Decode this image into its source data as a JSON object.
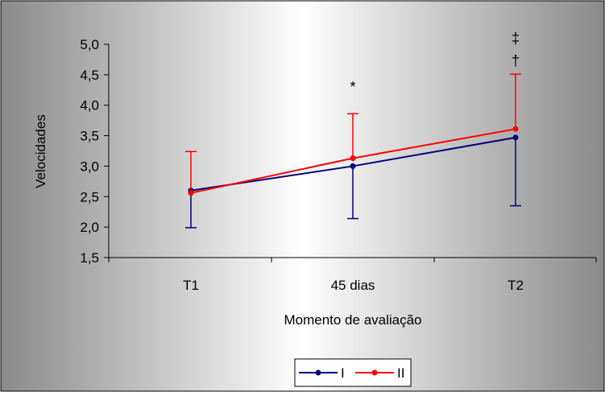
{
  "chart_data": {
    "type": "line",
    "xlabel": "Momento de avaliação",
    "ylabel": "Velocidades",
    "categories": [
      "T1",
      "45 dias",
      "T2"
    ],
    "ylim": [
      1.5,
      5.0
    ],
    "yticks": [
      "1,5",
      "2,0",
      "2,5",
      "3,0",
      "3,5",
      "4,0",
      "4,5",
      "5,0"
    ],
    "series": [
      {
        "name": "I",
        "color": "#000080",
        "values": [
          2.6,
          3.0,
          3.47
        ],
        "error_low": [
          1.99,
          2.14,
          2.35
        ]
      },
      {
        "name": "II",
        "color": "#FF0000",
        "values": [
          2.56,
          3.13,
          3.61
        ],
        "error_high": [
          3.24,
          3.86,
          4.51
        ]
      }
    ],
    "annotations": [
      {
        "text": "*",
        "category": "45 dias",
        "y": 4.3
      },
      {
        "text": "‡",
        "category": "T2",
        "y": 5.1
      },
      {
        "text": "†",
        "category": "T2",
        "y": 4.73
      }
    ],
    "legend": {
      "position": "bottom",
      "labels": [
        "I",
        "II"
      ]
    },
    "grid": false
  }
}
